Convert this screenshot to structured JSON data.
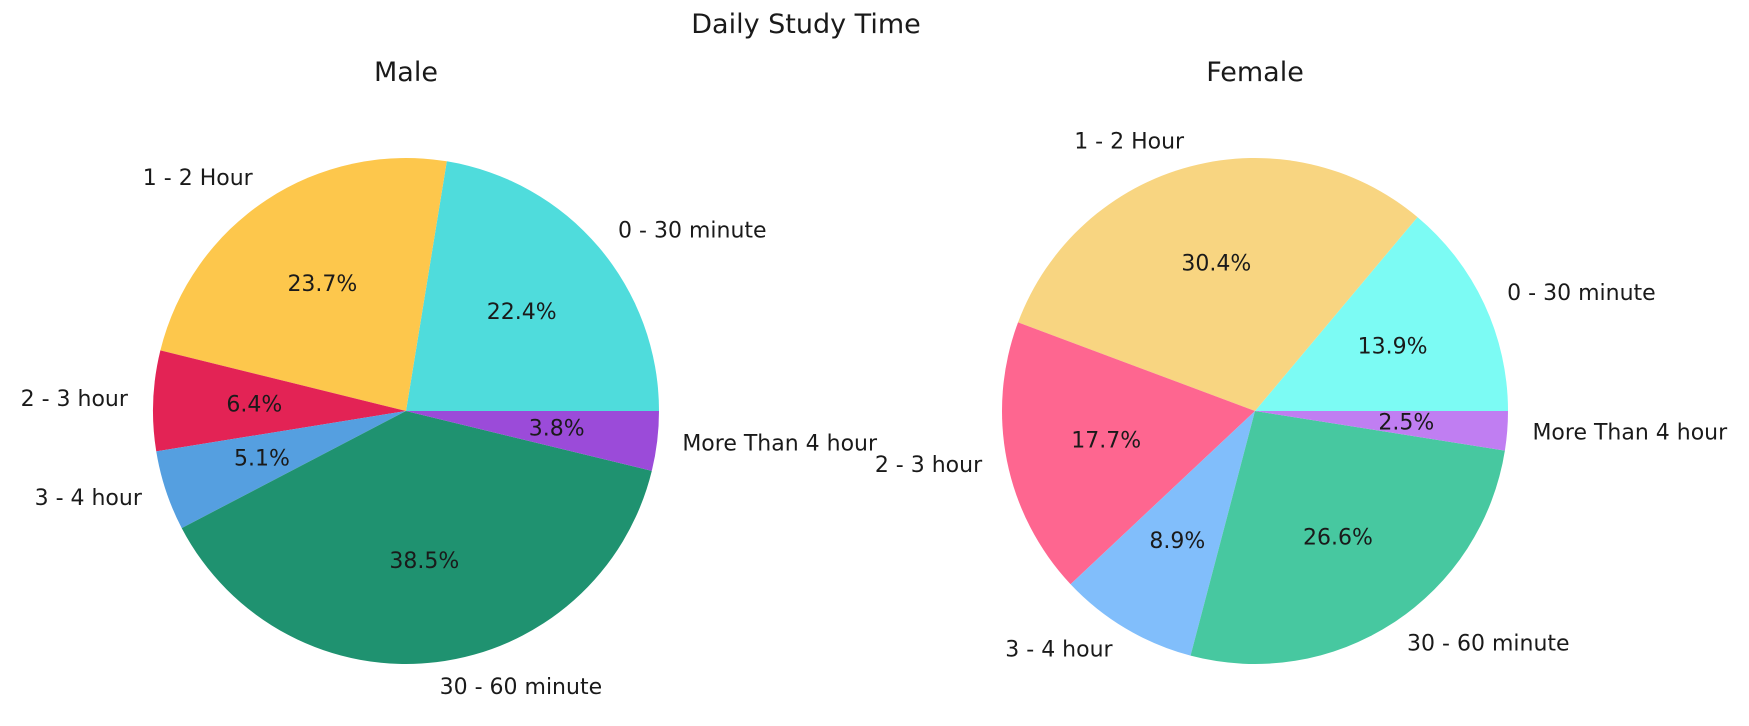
{
  "figure_title": "Daily Study Time",
  "chart_data": [
    {
      "type": "pie",
      "title": "Male",
      "categories": [
        "0 - 30 minute",
        "1 - 2 Hour",
        "2 - 3 hour",
        "3 - 4 hour",
        "30 - 60 minute",
        "More Than 4 hour"
      ],
      "values": [
        22.4,
        23.7,
        6.4,
        5.1,
        38.5,
        3.8
      ],
      "value_labels": [
        "22.4%",
        "23.7%",
        "6.4%",
        "5.1%",
        "38.5%",
        "3.8%"
      ],
      "colors": [
        "#4fdcdc",
        "#fdc74c",
        "#e32355",
        "#559fe0",
        "#1f9270",
        "#9b4bd9"
      ],
      "start_angle_deg": 0,
      "direction": "counterclockwise"
    },
    {
      "type": "pie",
      "title": "Female",
      "categories": [
        "0 - 30 minute",
        "1 - 2 Hour",
        "2 - 3 hour",
        "3 - 4 hour",
        "30 - 60 minute",
        "More Than 4 hour"
      ],
      "values": [
        13.9,
        30.4,
        17.7,
        8.9,
        26.6,
        2.5
      ],
      "value_labels": [
        "13.9%",
        "30.4%",
        "17.7%",
        "8.9%",
        "26.6%",
        "2.5%"
      ],
      "colors": [
        "#7cfbf4",
        "#f8d581",
        "#fe6690",
        "#81befb",
        "#47c8a0",
        "#c07ef2"
      ],
      "start_angle_deg": 0,
      "direction": "counterclockwise"
    }
  ]
}
